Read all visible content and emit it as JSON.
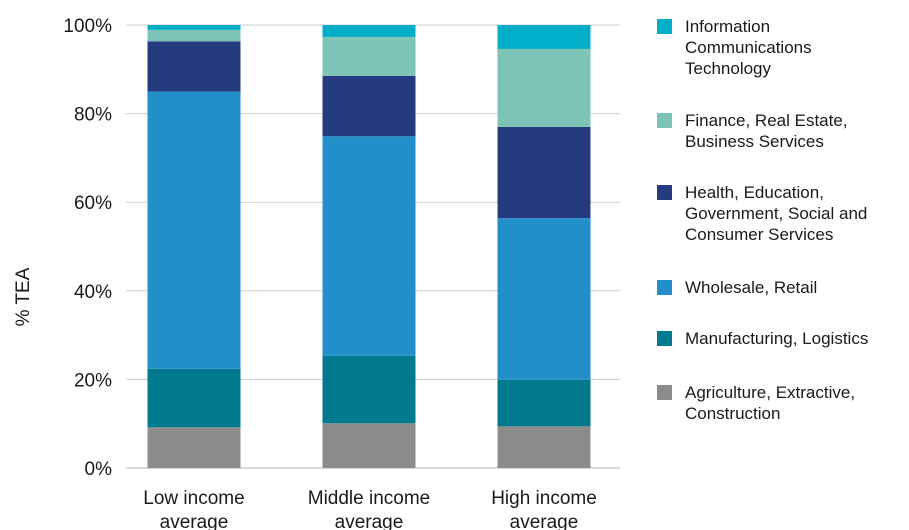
{
  "chart_data": {
    "type": "bar",
    "stacked": true,
    "ylabel": "% TEA",
    "ylim": [
      0,
      100
    ],
    "yticks": [
      "0%",
      "20%",
      "40%",
      "60%",
      "80%",
      "100%"
    ],
    "categories": [
      [
        "Low income",
        "average"
      ],
      [
        "Middle income",
        "average"
      ],
      [
        "High income",
        "average"
      ]
    ],
    "series": [
      {
        "name": "Agriculture, Extractive, Construction",
        "color": "#8c8c8c",
        "values": [
          9.2,
          10.1,
          9.4
        ]
      },
      {
        "name": "Manufacturing, Logistics",
        "color": "#007a8c",
        "values": [
          13.2,
          15.2,
          10.5
        ]
      },
      {
        "name": "Wholesale, Retail",
        "color": "#238fca",
        "values": [
          62.6,
          49.6,
          36.5
        ]
      },
      {
        "name": "Health, Education, Government, Social and Consumer Services",
        "color": "#253b7f",
        "values": [
          11.3,
          13.6,
          20.6
        ]
      },
      {
        "name": "Finance, Real Estate, Business Services",
        "color": "#7cc4b6",
        "values": [
          2.6,
          8.8,
          17.6
        ]
      },
      {
        "name": "Information Communications Technology",
        "color": "#00aec8",
        "values": [
          1.1,
          2.7,
          5.4
        ]
      }
    ],
    "grid": true,
    "legend_position": "right"
  },
  "legend": {
    "items": [
      {
        "lines": [
          "Information",
          "Communications",
          "Technology"
        ],
        "color": "#00aec8"
      },
      {
        "lines": [
          "Finance, Real Estate,",
          "Business Services"
        ],
        "color": "#7cc4b6"
      },
      {
        "lines": [
          "Health, Education,",
          "Government, Social and",
          "Consumer Services"
        ],
        "color": "#253b7f"
      },
      {
        "lines": [
          "Wholesale, Retail"
        ],
        "color": "#238fca"
      },
      {
        "lines": [
          "Manufacturing, Logistics"
        ],
        "color": "#007a8c"
      },
      {
        "lines": [
          "Agriculture, Extractive,",
          "Construction"
        ],
        "color": "#8c8c8c"
      }
    ]
  }
}
